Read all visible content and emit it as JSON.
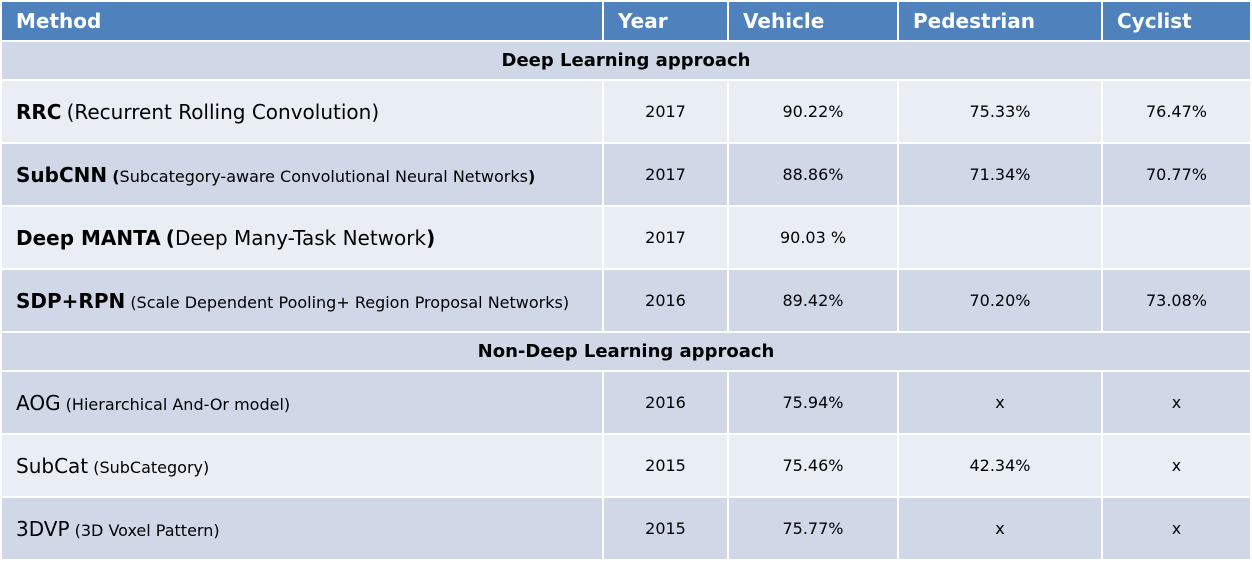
{
  "header": {
    "method": "Method",
    "year": "Year",
    "vehicle": "Vehicle",
    "pedestrian": "Pedestrian",
    "cyclist": "Cyclist"
  },
  "sections": [
    {
      "title": "Deep Learning approach",
      "rows": [
        {
          "name": "RRC",
          "desc": "(Recurrent Rolling Convolution)",
          "year": "2017",
          "vehicle": "90.22%",
          "pedestrian": "75.33%",
          "cyclist": "76.47%"
        },
        {
          "name": "SubCNN",
          "desc_open": "(",
          "desc": "Subcategory-aware Convolutional Neural Networks",
          "desc_close": ")",
          "year": "2017",
          "vehicle": "88.86%",
          "pedestrian": "71.34%",
          "cyclist": "70.77%"
        },
        {
          "name": "Deep MANTA",
          "desc_open": "(",
          "desc": "Deep Many-Task Network",
          "desc_close": ")",
          "year": "2017",
          "vehicle": "90.03 %",
          "pedestrian": "",
          "cyclist": ""
        },
        {
          "name": "SDP+RPN",
          "desc": "(Scale Dependent Pooling+ Region Proposal Networks)",
          "year": "2016",
          "vehicle": "89.42%",
          "pedestrian": "70.20%",
          "cyclist": "73.08%"
        }
      ]
    },
    {
      "title": "Non-Deep Learning approach",
      "rows": [
        {
          "name": "AOG",
          "desc": "(Hierarchical And-Or model)",
          "year": "2016",
          "vehicle": "75.94%",
          "pedestrian": "x",
          "cyclist": "x"
        },
        {
          "name": "SubCat",
          "desc": "(SubCategory)",
          "year": "2015",
          "vehicle": "75.46%",
          "pedestrian": "42.34%",
          "cyclist": "x"
        },
        {
          "name": "3DVP",
          "desc": "(3D Voxel Pattern)",
          "year": "2015",
          "vehicle": "75.77%",
          "pedestrian": "x",
          "cyclist": "x"
        }
      ]
    }
  ]
}
